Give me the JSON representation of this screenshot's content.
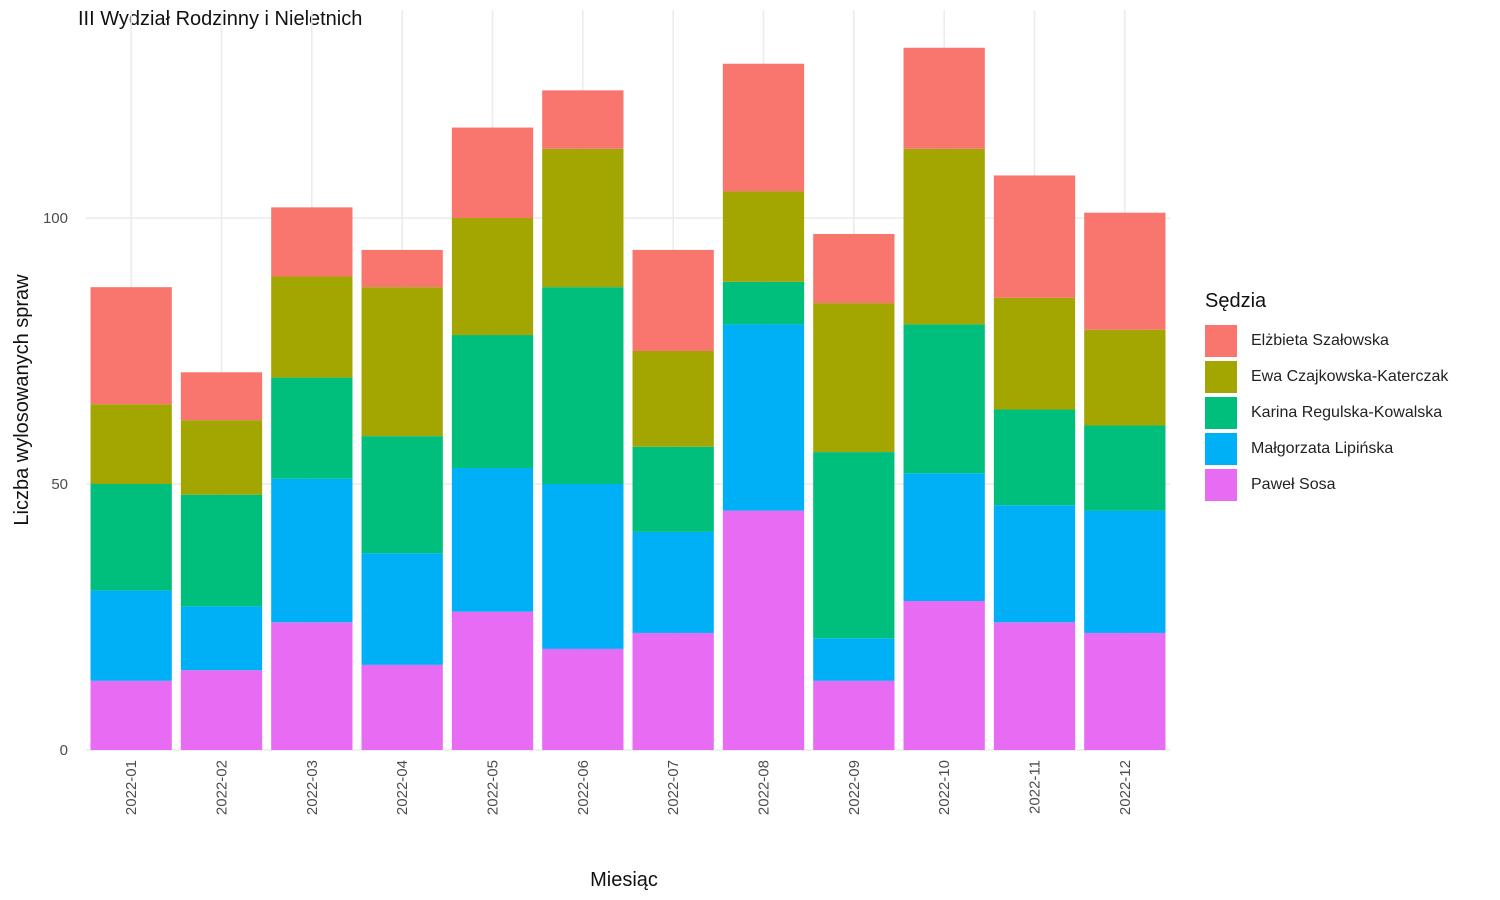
{
  "chart_data": {
    "type": "bar",
    "stacked": true,
    "title": "III Wydział Rodzinny i Nieletnich",
    "xlabel": "Miesiąc",
    "ylabel": "Liczba wylosowanych spraw",
    "ylim": [
      0,
      135
    ],
    "yticks": [
      0,
      50,
      100
    ],
    "grid": true,
    "legend_title": "Sędzia",
    "legend_position": "right",
    "categories": [
      "2022-01",
      "2022-02",
      "2022-03",
      "2022-04",
      "2022-05",
      "2022-06",
      "2022-07",
      "2022-08",
      "2022-09",
      "2022-10",
      "2022-11",
      "2022-12"
    ],
    "series": [
      {
        "name": "Paweł Sosa",
        "color": "#E76BF3",
        "values": [
          13,
          15,
          24,
          16,
          26,
          19,
          22,
          45,
          13,
          28,
          24,
          22
        ]
      },
      {
        "name": "Małgorzata Lipińska",
        "color": "#00B0F6",
        "values": [
          17,
          12,
          27,
          21,
          27,
          31,
          19,
          35,
          8,
          24,
          22,
          23
        ]
      },
      {
        "name": "Karina Regulska-Kowalska",
        "color": "#00BF7D",
        "values": [
          20,
          21,
          19,
          22,
          25,
          37,
          16,
          8,
          35,
          28,
          18,
          16
        ]
      },
      {
        "name": "Ewa Czajkowska-Katerczak",
        "color": "#A3A500",
        "values": [
          15,
          14,
          19,
          28,
          22,
          26,
          18,
          17,
          28,
          33,
          21,
          18
        ]
      },
      {
        "name": "Elżbieta Szałowska",
        "color": "#F8766D",
        "values": [
          22,
          9,
          13,
          7,
          17,
          11,
          19,
          24,
          13,
          19,
          23,
          22
        ]
      }
    ]
  }
}
